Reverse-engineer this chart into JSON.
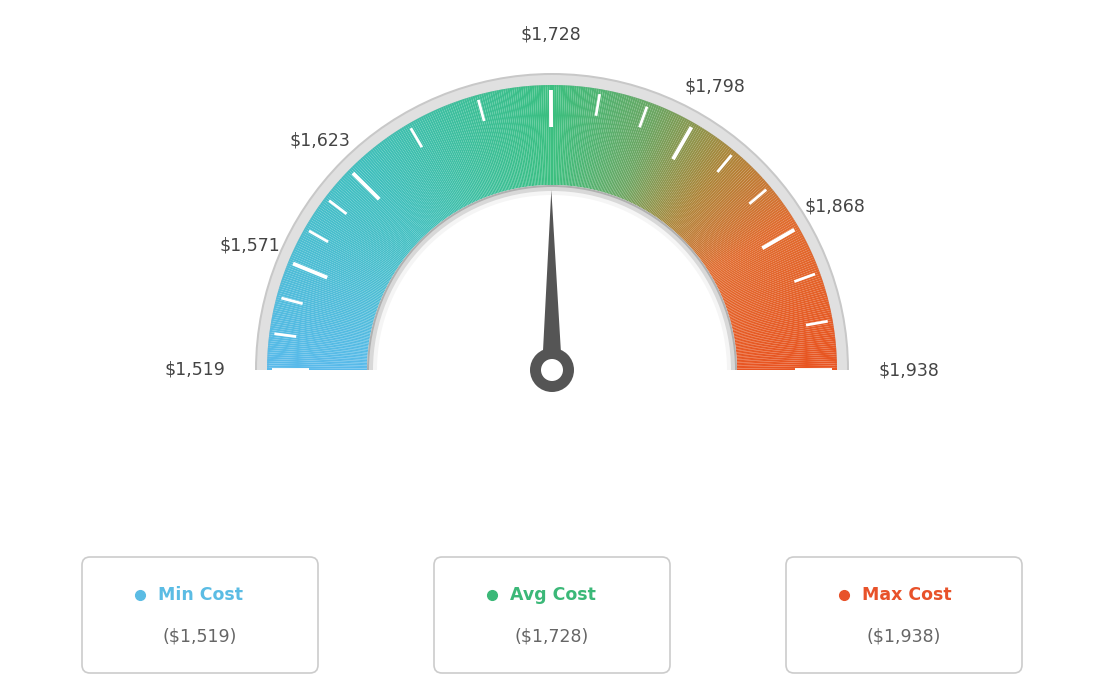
{
  "min_val": 1519,
  "max_val": 1938,
  "avg_val": 1728,
  "tick_labels": [
    "$1,519",
    "$1,571",
    "$1,623",
    "$1,728",
    "$1,798",
    "$1,868",
    "$1,938"
  ],
  "tick_values": [
    1519,
    1571,
    1623,
    1728,
    1798,
    1868,
    1938
  ],
  "legend_items": [
    {
      "label": "Min Cost",
      "value": "($1,519)",
      "color": "#5bbce4"
    },
    {
      "label": "Avg Cost",
      "value": "($1,728)",
      "color": "#3bb878"
    },
    {
      "label": "Max Cost",
      "value": "($1,938)",
      "color": "#e8522a"
    }
  ],
  "bg_color": "#ffffff",
  "needle_color": "#555555",
  "color_stops": [
    [
      0.0,
      [
        0.35,
        0.73,
        0.92
      ]
    ],
    [
      0.25,
      [
        0.25,
        0.75,
        0.75
      ]
    ],
    [
      0.5,
      [
        0.23,
        0.75,
        0.5
      ]
    ],
    [
      0.62,
      [
        0.42,
        0.65,
        0.38
      ]
    ],
    [
      0.72,
      [
        0.68,
        0.52,
        0.22
      ]
    ],
    [
      0.82,
      [
        0.88,
        0.42,
        0.18
      ]
    ],
    [
      1.0,
      [
        0.91,
        0.33,
        0.13
      ]
    ]
  ]
}
